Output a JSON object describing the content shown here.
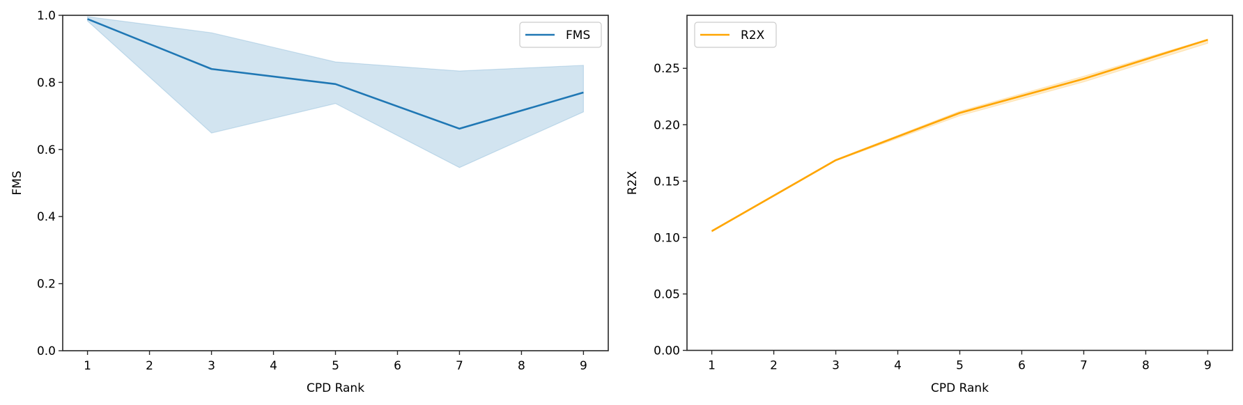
{
  "chart_data": [
    {
      "type": "line",
      "title": "",
      "xlabel": "CPD Rank",
      "ylabel": "FMS",
      "xlim": [
        0.6,
        9.4
      ],
      "ylim": [
        0.0,
        1.0
      ],
      "xticks": [
        1,
        2,
        3,
        4,
        5,
        6,
        7,
        8,
        9
      ],
      "xtick_labels": [
        "1",
        "2",
        "3",
        "4",
        "5",
        "6",
        "7",
        "8",
        "9"
      ],
      "yticks": [
        0.0,
        0.2,
        0.4,
        0.6,
        0.8,
        1.0
      ],
      "ytick_labels": [
        "0.0",
        "0.2",
        "0.4",
        "0.6",
        "0.8",
        "1.0"
      ],
      "grid": false,
      "legend_position": "top-right",
      "series": [
        {
          "name": "FMS",
          "color": "#1f77b4",
          "x": [
            1,
            3,
            5,
            7,
            9
          ],
          "values": [
            0.989,
            0.84,
            0.795,
            0.662,
            0.77
          ],
          "ci_lower": [
            0.983,
            0.649,
            0.737,
            0.546,
            0.712
          ],
          "ci_upper": [
            0.996,
            0.948,
            0.861,
            0.834,
            0.851
          ]
        }
      ]
    },
    {
      "type": "line",
      "title": "",
      "xlabel": "CPD Rank",
      "ylabel": "R2X",
      "xlim": [
        0.6,
        9.4
      ],
      "ylim": [
        0.0,
        0.297
      ],
      "xticks": [
        1,
        2,
        3,
        4,
        5,
        6,
        7,
        8,
        9
      ],
      "xtick_labels": [
        "1",
        "2",
        "3",
        "4",
        "5",
        "6",
        "7",
        "8",
        "9"
      ],
      "yticks": [
        0.0,
        0.05,
        0.1,
        0.15,
        0.2,
        0.25
      ],
      "ytick_labels": [
        "0.00",
        "0.05",
        "0.10",
        "0.15",
        "0.20",
        "0.25"
      ],
      "grid": false,
      "legend_position": "top-left",
      "series": [
        {
          "name": "R2X",
          "color": "#ffa500",
          "x": [
            1,
            3,
            5,
            7,
            9
          ],
          "values": [
            0.1057,
            0.1686,
            0.2105,
            0.2407,
            0.2753
          ],
          "ci_lower": [
            0.105,
            0.168,
            0.208,
            0.238,
            0.2722
          ],
          "ci_upper": [
            0.1062,
            0.1692,
            0.212,
            0.243,
            0.2759
          ]
        }
      ]
    }
  ]
}
